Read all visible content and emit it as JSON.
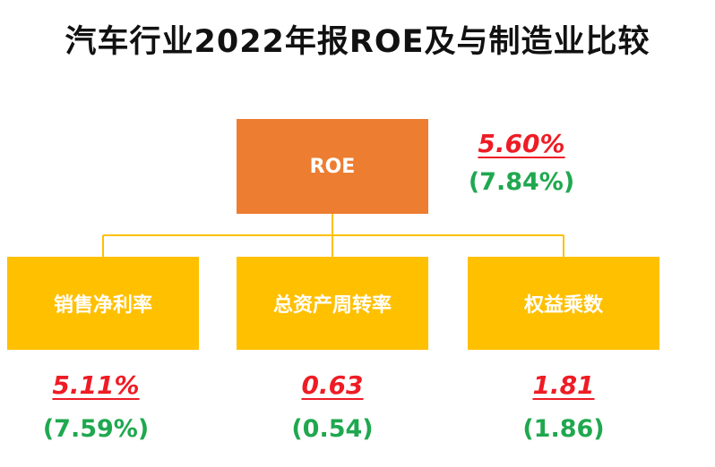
{
  "title": "汽车行业2022年报ROE及与制造业比较",
  "root": {
    "label": "ROE",
    "value": "5.60%",
    "compare": "(7.84%)"
  },
  "components": [
    {
      "label": "销售净利率",
      "value": "5.11%",
      "compare": "(7.59%)"
    },
    {
      "label": "总资产周转率",
      "value": "0.63",
      "compare": "(0.54)"
    },
    {
      "label": "权益乘数",
      "value": "1.81",
      "compare": "(1.86)"
    }
  ],
  "colors": {
    "root_box": "#ed7d31",
    "component_box": "#ffc000",
    "connector": "#ffc000",
    "value": "#ee1c25",
    "compare": "#1fa84f"
  }
}
